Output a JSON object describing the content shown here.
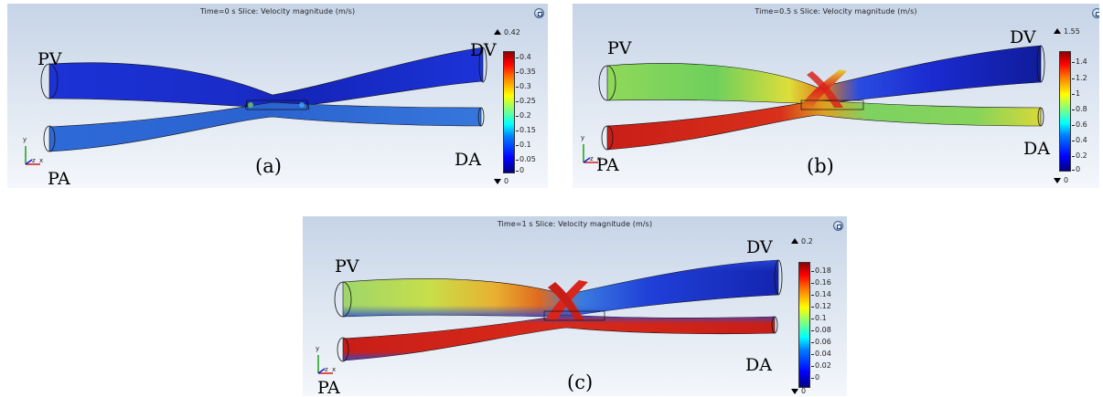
{
  "panels": [
    {
      "id": "a",
      "title": "Time=0 s   Slice: Velocity magnitude (m/s)",
      "letter": "(a)",
      "max": "0.42",
      "min": "0",
      "ticks": [
        "0.4",
        "0.35",
        "0.3",
        "0.25",
        "0.2",
        "0.15",
        "0.1",
        "0.05",
        "0"
      ],
      "labels": {
        "pv": "PV",
        "dv": "DV",
        "pa": "PA",
        "da": "DA"
      }
    },
    {
      "id": "b",
      "title": "Time=0.5 s   Slice: Velocity magnitude (m/s)",
      "letter": "(b)",
      "max": "1.55",
      "min": "0",
      "ticks": [
        "1.4",
        "1.2",
        "1",
        "0.8",
        "0.6",
        "0.4",
        "0.2",
        "0"
      ],
      "labels": {
        "pv": "PV",
        "dv": "DV",
        "pa": "PA",
        "da": "DA"
      }
    },
    {
      "id": "c",
      "title": "Time=1 s   Slice: Velocity magnitude (m/s)",
      "letter": "(c)",
      "max": "0.2",
      "min": "0",
      "ticks": [
        "0.18",
        "0.16",
        "0.14",
        "0.12",
        "0.1",
        "0.08",
        "0.06",
        "0.04",
        "0.02",
        "0"
      ],
      "labels": {
        "pv": "PV",
        "dv": "DV",
        "pa": "PA",
        "da": "DA"
      }
    }
  ],
  "axes": {
    "y": "y",
    "z": "z",
    "x": "x"
  },
  "colors": {
    "cool_blue": "#1a2fd8",
    "mid_blue": "#2f63d8",
    "green": "#6fd05a",
    "yellow": "#e8e23a",
    "red": "#d8261c",
    "dark_red": "#8b0000"
  }
}
